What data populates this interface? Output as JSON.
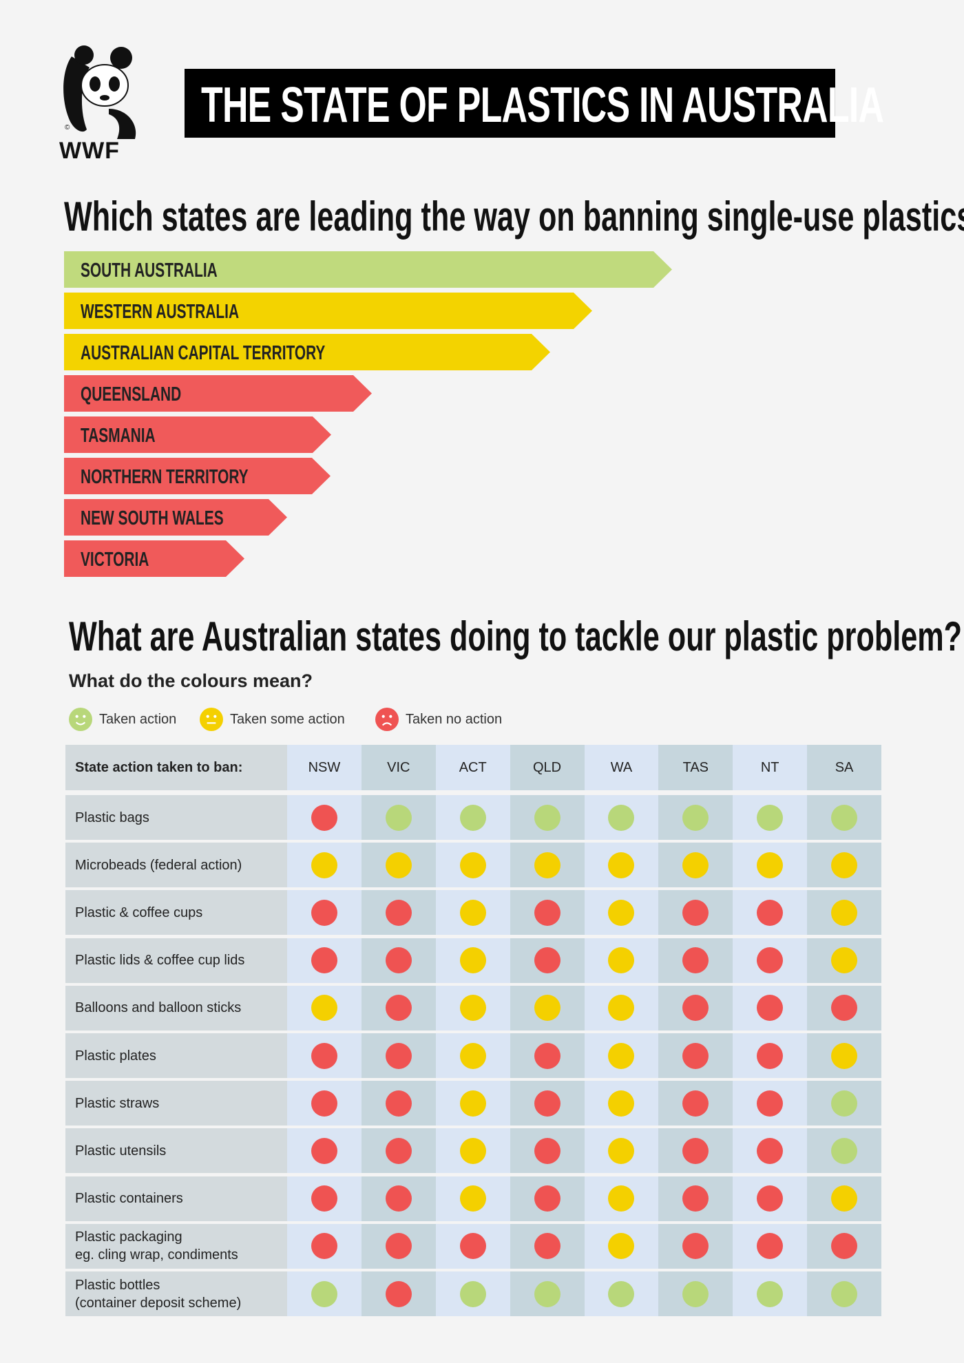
{
  "header": {
    "logo_text": "WWF",
    "title": "THE STATE OF PLASTICS IN AUSTRALIA"
  },
  "ranking": {
    "title": "Which states are leading the way on banning single-use plastics?",
    "items": [
      {
        "label": "SOUTH AUSTRALIA",
        "color": "#c0da7d"
      },
      {
        "label": "WESTERN AUSTRALIA",
        "color": "#f3d300"
      },
      {
        "label": "AUSTRALIAN CAPITAL TERRITORY",
        "color": "#f3d300"
      },
      {
        "label": "QUEENSLAND",
        "color": "#f05a5a"
      },
      {
        "label": "TASMANIA",
        "color": "#f05a5a"
      },
      {
        "label": "NORTHERN TERRITORY",
        "color": "#f05a5a"
      },
      {
        "label": "NEW SOUTH WALES",
        "color": "#f05a5a"
      },
      {
        "label": "VICTORIA",
        "color": "#f05a5a"
      }
    ]
  },
  "table": {
    "title": "What are Australian states doing to tackle our plastic problem?",
    "legend_title": "What do the colours mean?",
    "legend": [
      {
        "label": "Taken action",
        "color": "#b8d77a"
      },
      {
        "label": "Taken some action",
        "color": "#f4d000"
      },
      {
        "label": "Taken no action",
        "color": "#ef5352"
      }
    ],
    "header": "State action taken to ban:",
    "columns": [
      "NSW",
      "VIC",
      "ACT",
      "QLD",
      "WA",
      "TAS",
      "NT",
      "SA"
    ],
    "rows": [
      {
        "label": "Plastic bags",
        "cells": [
          "#ef5352",
          "#b8d77a",
          "#b8d77a",
          "#b8d77a",
          "#b8d77a",
          "#b8d77a",
          "#b8d77a",
          "#b8d77a"
        ]
      },
      {
        "label": "Microbeads (federal action)",
        "cells": [
          "#f4d000",
          "#f4d000",
          "#f4d000",
          "#f4d000",
          "#f4d000",
          "#f4d000",
          "#f4d000",
          "#f4d000"
        ]
      },
      {
        "label": "Plastic & coffee cups",
        "cells": [
          "#ef5352",
          "#ef5352",
          "#f4d000",
          "#ef5352",
          "#f4d000",
          "#ef5352",
          "#ef5352",
          "#f4d000"
        ]
      },
      {
        "label": "Plastic lids & coffee cup lids",
        "cells": [
          "#ef5352",
          "#ef5352",
          "#f4d000",
          "#ef5352",
          "#f4d000",
          "#ef5352",
          "#ef5352",
          "#f4d000"
        ]
      },
      {
        "label": "Balloons and balloon sticks",
        "cells": [
          "#f4d000",
          "#ef5352",
          "#f4d000",
          "#f4d000",
          "#f4d000",
          "#ef5352",
          "#ef5352",
          "#ef5352"
        ]
      },
      {
        "label": "Plastic plates",
        "cells": [
          "#ef5352",
          "#ef5352",
          "#f4d000",
          "#ef5352",
          "#f4d000",
          "#ef5352",
          "#ef5352",
          "#f4d000"
        ]
      },
      {
        "label": "Plastic straws",
        "cells": [
          "#ef5352",
          "#ef5352",
          "#f4d000",
          "#ef5352",
          "#f4d000",
          "#ef5352",
          "#ef5352",
          "#b8d77a"
        ]
      },
      {
        "label": "Plastic utensils",
        "cells": [
          "#ef5352",
          "#ef5352",
          "#f4d000",
          "#ef5352",
          "#f4d000",
          "#ef5352",
          "#ef5352",
          "#b8d77a"
        ]
      },
      {
        "label": "Plastic containers",
        "cells": [
          "#ef5352",
          "#ef5352",
          "#f4d000",
          "#ef5352",
          "#f4d000",
          "#ef5352",
          "#ef5352",
          "#f4d000"
        ]
      },
      {
        "label": "Plastic packaging\neg. cling wrap, condiments",
        "cells": [
          "#ef5352",
          "#ef5352",
          "#ef5352",
          "#ef5352",
          "#f4d000",
          "#ef5352",
          "#ef5352",
          "#ef5352"
        ]
      },
      {
        "label": "Plastic bottles\n(container deposit scheme)",
        "cells": [
          "#b8d77a",
          "#ef5352",
          "#b8d77a",
          "#b8d77a",
          "#b8d77a",
          "#b8d77a",
          "#b8d77a",
          "#b8d77a"
        ]
      }
    ]
  }
}
